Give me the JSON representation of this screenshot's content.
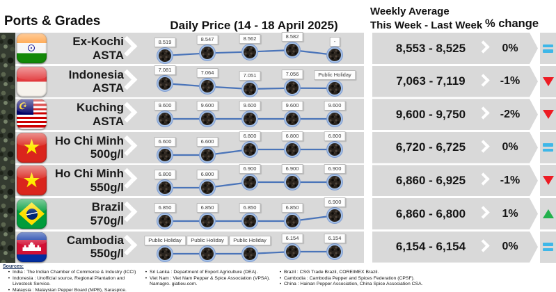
{
  "header": {
    "ports_grades": "Ports & Grades",
    "daily_price": "Daily Price (14 - 18 April 2025)",
    "weekly_avg_line1": "Weekly Average",
    "weekly_avg_line2": "This Week - Last Week",
    "pct_change": "% change"
  },
  "colors": {
    "row_bg": "#d9d9d9",
    "line": "#4a74b9",
    "trend_up": "#23b14d",
    "trend_down": "#ed1c24",
    "trend_equal": "#3eb7e8"
  },
  "chart_data": {
    "type": "line",
    "title": "Daily Price (14 - 18 April 2025)",
    "x": [
      1,
      2,
      3,
      4,
      5
    ],
    "x_note": "five trading days, 14-18 April 2025",
    "legend_position": "none",
    "grid": false,
    "series": [
      {
        "flag": "india",
        "port": "Ex-Kochi",
        "grade": "ASTA",
        "values": [
          8519,
          8547,
          8562,
          8582,
          null
        ],
        "labels": [
          "8.519",
          "8.547",
          "8.562",
          "8.582",
          "-"
        ],
        "weekly": "8,553 - 8,525",
        "change": "0%",
        "trend": "equal"
      },
      {
        "flag": "indonesia",
        "port": "Indonesia",
        "grade": "ASTA",
        "values": [
          7081,
          7064,
          7051,
          7056,
          null
        ],
        "labels": [
          "7.081",
          "7.064",
          "7.051",
          "7.056",
          "Public Holiday"
        ],
        "weekly": "7,063 - 7,119",
        "change": "-1%",
        "trend": "down"
      },
      {
        "flag": "malaysia",
        "port": "Kuching",
        "grade": "ASTA",
        "values": [
          9600,
          9600,
          9600,
          9600,
          9600
        ],
        "labels": [
          "9.600",
          "9.600",
          "9.600",
          "9.600",
          "9.600"
        ],
        "weekly": "9,600 - 9,750",
        "change": "-2%",
        "trend": "down"
      },
      {
        "flag": "vietnam",
        "port": "Ho Chi Minh",
        "grade": "500g/l",
        "values": [
          6600,
          6600,
          6800,
          6800,
          6800
        ],
        "labels": [
          "6.600",
          "6.600",
          "6.800",
          "6.800",
          "6.800"
        ],
        "weekly": "6,720 - 6,725",
        "change": "0%",
        "trend": "equal"
      },
      {
        "flag": "vietnam",
        "port": "Ho Chi Minh",
        "grade": "550g/l",
        "values": [
          6800,
          6800,
          6900,
          6900,
          6900
        ],
        "labels": [
          "6.800",
          "6.800",
          "6.900",
          "6.900",
          "6.900"
        ],
        "weekly": "6,860 - 6,925",
        "change": "-1%",
        "trend": "down"
      },
      {
        "flag": "brazil",
        "port": "Brazil",
        "grade": "570g/l",
        "values": [
          6850,
          6850,
          6850,
          6850,
          6900
        ],
        "labels": [
          "6.850",
          "6.850",
          "6.850",
          "6.850",
          "6.900"
        ],
        "weekly": "6,860 - 6,800",
        "change": "1%",
        "trend": "up"
      },
      {
        "flag": "cambodia",
        "port": "Cambodia",
        "grade": "550g/l",
        "values": [
          null,
          null,
          null,
          6154,
          6154
        ],
        "labels": [
          "Public Holiday",
          "Public Holiday",
          "Public Holiday",
          "6.154",
          "6.154"
        ],
        "weekly": "6,154 - 6,154",
        "change": "0%",
        "trend": "equal"
      }
    ]
  },
  "footer": {
    "sources_label": "Sources:",
    "columns": [
      {
        "items": [
          "India : The Indian Chamber of Commerce & Industry (ICCI)",
          "Indonesia : Unofficial source, Regional Plantation and Livestock Service.",
          "Malaysia : Malaysian Pepper Board (MPB), Saraspice."
        ]
      },
      {
        "items": [
          "Sri Lanka : Department of Export Agriculture (DEA).",
          "Viet Nam : Viet Nam Pepper & Spice Association (VPSA). Namagro. giatieu.com."
        ]
      },
      {
        "items": [
          "Brazil : CSG Trade Brazil, COREIMEX Brazil.",
          "Cambodia : Cambodia Pepper and Spices Federation (CPSF).",
          "China : Hainan Pepper Association, China Spice Association CSA."
        ]
      }
    ]
  }
}
